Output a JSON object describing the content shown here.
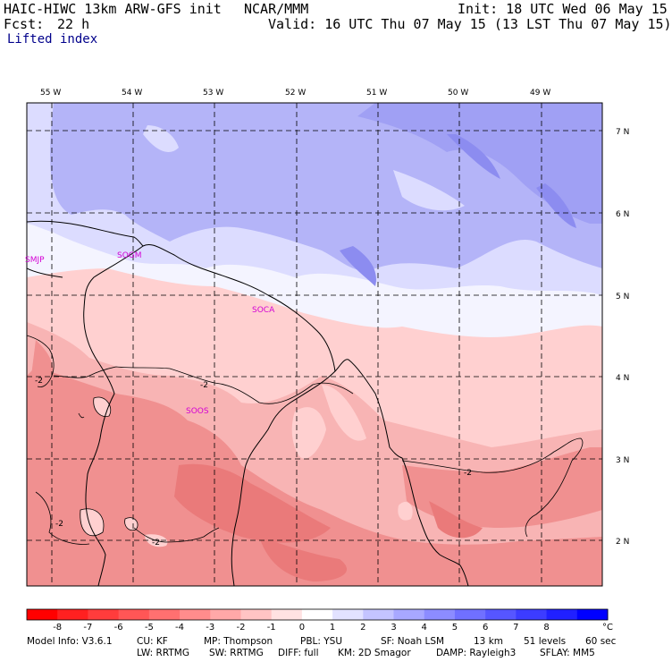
{
  "header": {
    "model": "HAIC-HIWC 13km ARW-GFS init",
    "org": "NCAR/MMM",
    "init": "Init: 18 UTC Wed 06 May 15",
    "fcst_label": "Fcst:",
    "fcst_value": "22 h",
    "valid": "Valid: 16 UTC Thu 07 May 15 (13 LST Thu 07 May 15)",
    "field": "Lifted index"
  },
  "map": {
    "lon_labels": [
      "55 W",
      "54 W",
      "53 W",
      "52 W",
      "51 W",
      "50 W",
      "49 W"
    ],
    "lat_labels": [
      "7 N",
      "6 N",
      "5 N",
      "4 N",
      "3 N",
      "2 N"
    ],
    "stations": [
      "SMJP",
      "SOGM",
      "SOCA",
      "SOOS"
    ],
    "contour_labels": [
      "-2",
      "-2",
      "-2",
      "-2",
      "-2"
    ],
    "colors": {
      "blue_dark": "#8c8cf0",
      "blue_mid": "#b4b4f8",
      "blue_light": "#dcdcff",
      "white": "#f4f4ff",
      "pink_light": "#ffd0d0",
      "pink_mid": "#f8b4b4",
      "red_mid": "#f09090",
      "red_dark": "#ea7a7a",
      "station": "#d400d4"
    }
  },
  "colorbar": {
    "ticks": [
      "-8",
      "-7",
      "-6",
      "-5",
      "-4",
      "-3",
      "-2",
      "-1",
      "0",
      "1",
      "2",
      "3",
      "4",
      "5",
      "6",
      "7",
      "8"
    ],
    "unit": "°C",
    "colors": [
      "#ff0000",
      "#ff2020",
      "#ff3c3c",
      "#ff5656",
      "#ff7070",
      "#ff8c8c",
      "#ffa8a8",
      "#ffc4c4",
      "#ffe2e2",
      "#ffffff",
      "#e2e2ff",
      "#c4c4ff",
      "#a8a8ff",
      "#8c8cff",
      "#7070ff",
      "#5656ff",
      "#3c3cff",
      "#2020ff",
      "#0000ff"
    ]
  },
  "footer": {
    "line1": {
      "model_info": "Model Info: V3.6.1",
      "cu": "CU: KF",
      "mp": "MP: Thompson",
      "pbl": "PBL: YSU",
      "sf": "SF: Noah LSM",
      "res": "13 km",
      "levels": "51 levels",
      "dt": "60 sec"
    },
    "line2": {
      "lw": "LW: RRTMG",
      "sw": "SW: RRTMG",
      "diff": "DIFF: full",
      "km": "KM: 2D Smagor",
      "damp": "DAMP: Rayleigh3",
      "sflay": "SFLAY: MM5"
    }
  }
}
